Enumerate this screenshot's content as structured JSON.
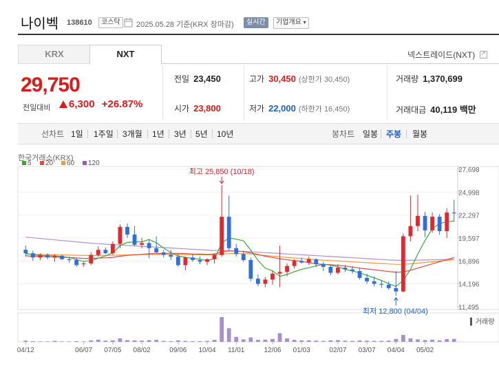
{
  "header": {
    "name": "나이벡",
    "code": "138610",
    "market_badge": "코스닥",
    "date": "2025.05.28",
    "basis": "기준(KRX 장마감)",
    "realtime_badge": "실시간",
    "company_info": "기업개요"
  },
  "tabs": [
    {
      "label": "KRX"
    },
    {
      "label": "NXT"
    }
  ],
  "nxt_link": "넥스트레이드(NXT)",
  "quote": {
    "price": "29,750",
    "change_label": "전일대비",
    "change": "6,300",
    "change_pct": "+26.87%"
  },
  "stats": {
    "prev": {
      "label": "전일",
      "value": "23,450"
    },
    "open": {
      "label": "시가",
      "value": "23,800"
    },
    "high": {
      "label": "고가",
      "value": "30,450",
      "note": "(상한가 30,450)"
    },
    "low": {
      "label": "저가",
      "value": "22,000",
      "note": "(하한가 16,450)"
    },
    "volume": {
      "label": "거래량",
      "value": "1,370,699"
    },
    "amount": {
      "label": "거래대금",
      "value": "40,119 백만"
    }
  },
  "nav": {
    "line_label": "선차트",
    "periods": [
      "1일",
      "1주일",
      "3개월",
      "1년",
      "3년",
      "5년",
      "10년"
    ],
    "candle_label": "봉차트",
    "candles": [
      "일봉",
      "주봉",
      "월봉"
    ],
    "active_candle": "주봉"
  },
  "chart_data": {
    "type": "candlestick",
    "source_label": "한국거래소(KRX)",
    "legend": [
      {
        "label": "5",
        "color": "#3aaa35"
      },
      {
        "label": "20",
        "color": "#e8473c"
      },
      {
        "label": "60",
        "color": "#f19a38"
      },
      {
        "label": "120",
        "color": "#9b59b6"
      }
    ],
    "y_ticks": [
      27698,
      24998,
      22297,
      19597,
      16896,
      14196,
      11495
    ],
    "y_tick_labels": [
      "27,698",
      "24,998",
      "22,297",
      "19,597",
      "16,896",
      "14,196",
      "11,495"
    ],
    "ylim": [
      11495,
      27698
    ],
    "x_labels": [
      "04/12",
      "06/07",
      "07/05",
      "08/02",
      "09/06",
      "10/04",
      "11/01",
      "12/06",
      "01/03",
      "02/07",
      "03/07",
      "04/04",
      "05/02"
    ],
    "x_label_index": [
      0,
      8,
      12,
      16,
      21,
      25,
      29,
      34,
      38,
      43,
      47,
      51,
      55
    ],
    "high_annotation": "최고 25,850 (10/18)",
    "high_index": 27,
    "high_value": 25850,
    "low_annotation": "최저 12,800 (04/04)",
    "low_index": 51,
    "low_value": 12800,
    "volume_label": "거래량",
    "candles": [
      [
        18200,
        18700,
        17400,
        17800
      ],
      [
        17800,
        18100,
        16900,
        17300
      ],
      [
        17300,
        17800,
        17000,
        17600
      ],
      [
        17600,
        17800,
        17100,
        17300
      ],
      [
        17300,
        17700,
        16800,
        17500
      ],
      [
        17500,
        17600,
        17000,
        17100
      ],
      [
        17100,
        17400,
        16700,
        17000
      ],
      [
        17000,
        17200,
        16200,
        16400
      ],
      [
        16500,
        16800,
        16200,
        16600
      ],
      [
        16600,
        17900,
        16400,
        17600
      ],
      [
        17600,
        18600,
        17400,
        18200
      ],
      [
        18200,
        18500,
        17700,
        17800
      ],
      [
        17800,
        19200,
        17600,
        18900
      ],
      [
        18900,
        21200,
        18400,
        20900
      ],
      [
        20900,
        21300,
        19600,
        20000
      ],
      [
        20000,
        21000,
        18600,
        18800
      ],
      [
        18800,
        19600,
        18400,
        19000
      ],
      [
        19000,
        19400,
        17200,
        18400
      ],
      [
        18400,
        19800,
        17800,
        17900
      ],
      [
        17900,
        18200,
        17300,
        17600
      ],
      [
        17600,
        18200,
        17000,
        17400
      ],
      [
        17400,
        17700,
        16200,
        16400
      ],
      [
        16400,
        17400,
        15800,
        17300
      ],
      [
        17300,
        17700,
        16800,
        17000
      ],
      [
        17000,
        17400,
        16500,
        16800
      ],
      [
        16800,
        17200,
        16400,
        17100
      ],
      [
        17100,
        17800,
        16600,
        17600
      ],
      [
        17600,
        25850,
        17400,
        22100
      ],
      [
        22100,
        24600,
        18000,
        18400
      ],
      [
        18400,
        18900,
        17400,
        17700
      ],
      [
        17700,
        18100,
        16800,
        17000
      ],
      [
        17000,
        17300,
        14500,
        14800
      ],
      [
        14800,
        15300,
        13900,
        14200
      ],
      [
        14200,
        15000,
        13800,
        14700
      ],
      [
        14700,
        15800,
        14100,
        15400
      ],
      [
        15400,
        18700,
        13800,
        15600
      ],
      [
        15600,
        16600,
        15100,
        16300
      ],
      [
        16300,
        17100,
        16000,
        16900
      ],
      [
        16900,
        17300,
        16600,
        16700
      ],
      [
        16700,
        17400,
        16400,
        17100
      ],
      [
        17100,
        17200,
        16200,
        16500
      ],
      [
        16500,
        16800,
        15700,
        16200
      ],
      [
        16200,
        16400,
        15200,
        15500
      ],
      [
        15500,
        16500,
        15300,
        16100
      ],
      [
        16100,
        16400,
        15600,
        15900
      ],
      [
        15900,
        16300,
        15400,
        15700
      ],
      [
        15700,
        16100,
        14700,
        14900
      ],
      [
        14900,
        15400,
        14200,
        14500
      ],
      [
        14500,
        15100,
        13900,
        14200
      ],
      [
        14200,
        14600,
        13700,
        14100
      ],
      [
        14100,
        14500,
        13500,
        13700
      ],
      [
        13700,
        15700,
        12800,
        13300
      ],
      [
        13300,
        20100,
        13200,
        19800
      ],
      [
        19800,
        24600,
        19200,
        21000
      ],
      [
        21000,
        24700,
        20400,
        22200
      ],
      [
        22200,
        22700,
        19700,
        20500
      ],
      [
        20500,
        22600,
        20200,
        22100
      ],
      [
        22100,
        22400,
        20000,
        20400
      ],
      [
        20400,
        23100,
        19600,
        22600
      ],
      [
        22600,
        24100,
        21500,
        22500
      ]
    ],
    "ma5": [
      17800,
      17600,
      17550,
      17500,
      17500,
      17400,
      17300,
      17060,
      16850,
      16920,
      17220,
      17480,
      17840,
      18680,
      19080,
      19140,
      19140,
      19420,
      19040,
      18420,
      17860,
      17480,
      17320,
      17200,
      17100,
      16920,
      17160,
      19000,
      19600,
      19460,
      19260,
      18170,
      16960,
      16040,
      15720,
      15080,
      15300,
      15630,
      15900,
      16100,
      16300,
      16500,
      16400,
      16200,
      15900,
      15700,
      15500,
      15200,
      14900,
      14600,
      14200,
      13900,
      14600,
      15900,
      17700,
      19300,
      20700,
      21300,
      21500,
      21600
    ],
    "ma20": [
      17500,
      17450,
      17420,
      17380,
      17350,
      17320,
      17300,
      17250,
      17200,
      17200,
      17230,
      17260,
      17320,
      17450,
      17550,
      17620,
      17680,
      17740,
      17760,
      17780,
      17800,
      17780,
      17760,
      17720,
      17700,
      17680,
      17700,
      17950,
      18080,
      18060,
      18000,
      17850,
      17650,
      17450,
      17300,
      17150,
      17030,
      16950,
      16850,
      16700,
      16550,
      16500,
      16450,
      16380,
      16300,
      16180,
      16050,
      15950,
      15850,
      15750,
      15650,
      15550,
      15600,
      15800,
      16050,
      16300,
      16550,
      16800,
      17050,
      17300
    ],
    "ma60": [
      17700,
      17680,
      17660,
      17640,
      17620,
      17600,
      17580,
      17560,
      17540,
      17540,
      17540,
      17550,
      17560,
      17580,
      17600,
      17620,
      17640,
      17650,
      17660,
      17660,
      17660,
      17650,
      17640,
      17630,
      17620,
      17610,
      17620,
      17700,
      17760,
      17770,
      17760,
      17700,
      17620,
      17540,
      17460,
      17380,
      17310,
      17250,
      17180,
      17110,
      17040,
      16990,
      16940,
      16890,
      16840,
      16790,
      16740,
      16690,
      16640,
      16590,
      16540,
      16490,
      16500,
      16560,
      16640,
      16720,
      16800,
      16880,
      16960,
      17050
    ],
    "ma120": [
      19700,
      19620,
      19540,
      19460,
      19380,
      19300,
      19220,
      19140,
      19060,
      18990,
      18930,
      18870,
      18820,
      18770,
      18720,
      18670,
      18620,
      18570,
      18520,
      18470,
      18420,
      18370,
      18320,
      18270,
      18220,
      18170,
      18130,
      18110,
      18090,
      18060,
      18020,
      17970,
      17920,
      17870,
      17820,
      17770,
      17720,
      17670,
      17620,
      17570,
      17520,
      17470,
      17420,
      17370,
      17320,
      17270,
      17220,
      17170,
      17120,
      17070,
      17020,
      16970,
      16960,
      16970,
      16990,
      17010,
      17030,
      17050,
      17070,
      17090
    ],
    "volume": [
      5,
      3,
      2,
      2,
      4,
      2,
      2,
      3,
      2,
      6,
      9,
      5,
      6,
      14,
      7,
      6,
      5,
      7,
      8,
      4,
      3,
      6,
      4,
      3,
      3,
      4,
      8,
      100,
      55,
      20,
      10,
      18,
      8,
      9,
      12,
      35,
      14,
      8,
      6,
      6,
      5,
      4,
      6,
      7,
      5,
      4,
      6,
      5,
      4,
      4,
      5,
      12,
      28,
      14,
      10,
      7,
      9,
      6,
      11,
      12
    ]
  }
}
